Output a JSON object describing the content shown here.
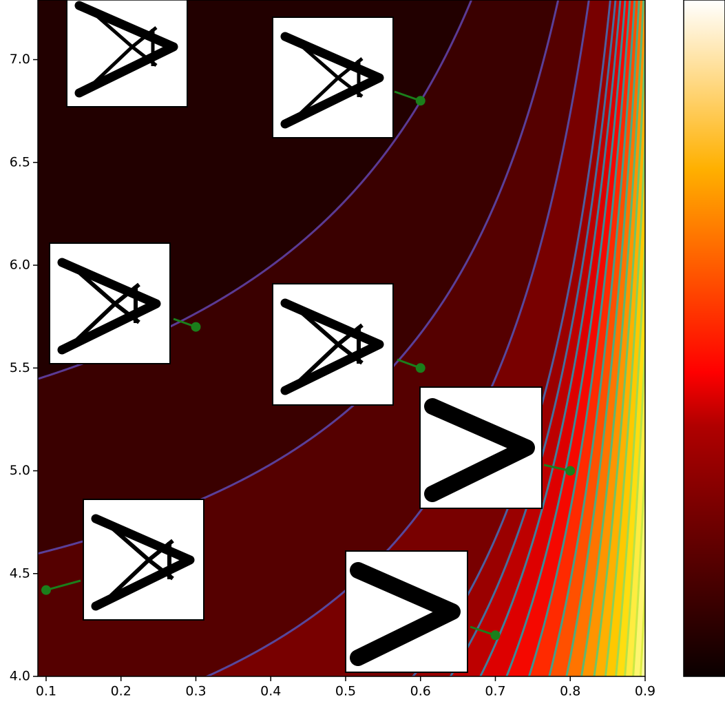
{
  "chart_data": {
    "type": "scatter",
    "x": [
      0.6,
      0.3,
      0.6,
      0.8,
      0.1,
      0.7
    ],
    "values": [
      6.8,
      5.7,
      5.5,
      5.0,
      4.42,
      4.2
    ],
    "color": "#1b7f1b",
    "xlim": [
      0.089,
      0.9
    ],
    "ylim": [
      4.0,
      7.29
    ],
    "xticks": [
      0.1,
      0.2,
      0.3,
      0.4,
      0.5,
      0.6,
      0.7,
      0.8,
      0.9
    ],
    "yticks": [
      {
        "value": 4.0,
        "label": "4.0"
      },
      4.5,
      {
        "value": 5.0,
        "label": "5.0"
      },
      5.5,
      {
        "value": 6.0,
        "label": "6.0"
      },
      6.5,
      {
        "value": 7.0,
        "label": "7.0"
      }
    ],
    "colormap": "hot"
  }
}
